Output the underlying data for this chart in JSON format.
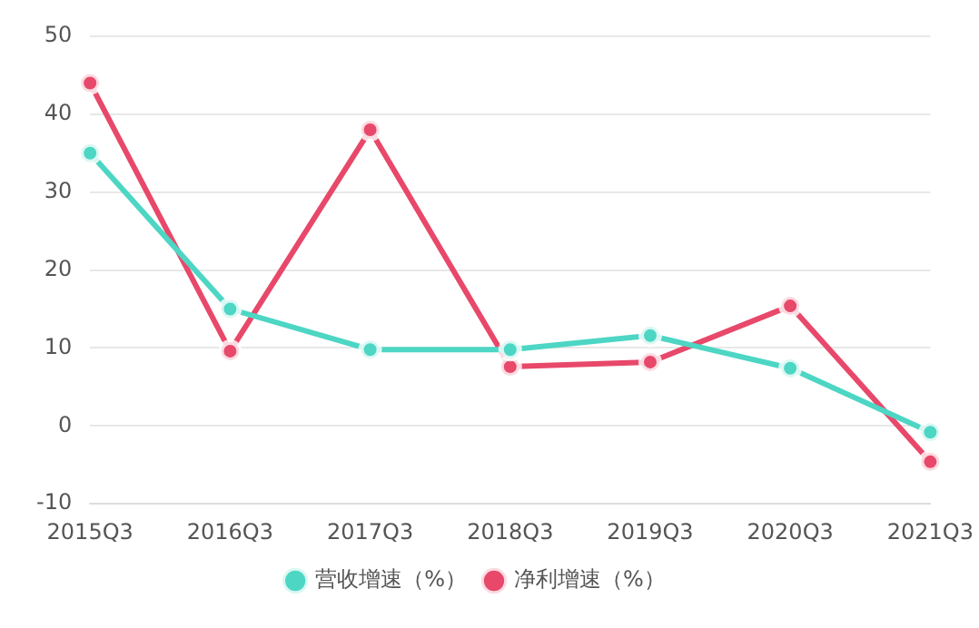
{
  "chart_data": {
    "type": "line",
    "categories": [
      "2015Q3",
      "2016Q3",
      "2017Q3",
      "2018Q3",
      "2019Q3",
      "2020Q3",
      "2021Q3"
    ],
    "series": [
      {
        "name": "营收增速（%）",
        "color": "#4dd6c4",
        "values": [
          35,
          15,
          9.8,
          9.8,
          11.6,
          7.4,
          -0.8
        ]
      },
      {
        "name": "净利增速（%）",
        "color": "#e8486a",
        "values": [
          44,
          9.6,
          38,
          7.6,
          8.2,
          15.4,
          -4.6
        ]
      }
    ],
    "ylim": [
      -10,
      50
    ],
    "yticks": [
      -10,
      0,
      10,
      20,
      30,
      40,
      50
    ],
    "grid": "y",
    "legend": "bottom",
    "marker": "circle",
    "line_style": "solid"
  }
}
